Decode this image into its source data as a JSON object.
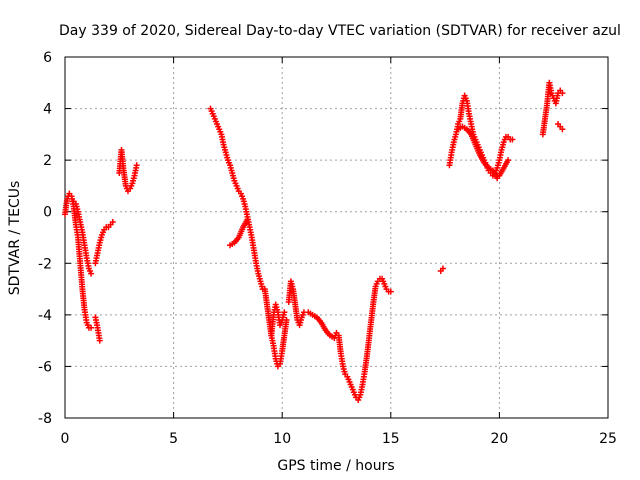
{
  "chart_data": {
    "type": "scatter",
    "title": "Day 339 of 2020, Sidereal Day-to-day VTEC variation (SDTVAR) for receiver azul",
    "xlabel": "GPS time / hours",
    "ylabel": "SDTVAR / TECUs",
    "xlim": [
      0,
      25
    ],
    "ylim": [
      -8,
      6
    ],
    "xticks": [
      "0",
      "5",
      "10",
      "15",
      "20",
      "25"
    ],
    "yticks": [
      "-8",
      "-6",
      "-4",
      "-2",
      "0",
      "2",
      "4",
      "6"
    ],
    "grid": true,
    "marker": "+",
    "color": "#ff0000",
    "segments": [
      [
        [
          0.0,
          -0.1
        ],
        [
          0.1,
          0.5
        ],
        [
          0.2,
          0.7
        ],
        [
          0.3,
          0.6
        ],
        [
          0.4,
          0.2
        ],
        [
          0.5,
          -0.5
        ],
        [
          0.6,
          -1.0
        ],
        [
          0.7,
          -2.0
        ],
        [
          0.8,
          -3.0
        ],
        [
          0.9,
          -3.8
        ],
        [
          1.0,
          -4.3
        ],
        [
          1.1,
          -4.5
        ],
        [
          1.2,
          -4.5
        ]
      ],
      [
        [
          0.4,
          0.4
        ],
        [
          0.5,
          0.3
        ],
        [
          0.6,
          0.0
        ],
        [
          0.7,
          -0.4
        ],
        [
          0.8,
          -0.8
        ],
        [
          0.9,
          -1.3
        ],
        [
          1.0,
          -1.8
        ],
        [
          1.1,
          -2.2
        ],
        [
          1.2,
          -2.4
        ]
      ],
      [
        [
          1.4,
          -4.1
        ],
        [
          1.5,
          -4.5
        ],
        [
          1.6,
          -5.0
        ]
      ],
      [
        [
          1.4,
          -2.0
        ],
        [
          1.5,
          -1.6
        ],
        [
          1.6,
          -1.2
        ],
        [
          1.7,
          -0.9
        ],
        [
          1.8,
          -0.7
        ],
        [
          1.9,
          -0.6
        ],
        [
          2.0,
          -0.6
        ],
        [
          2.1,
          -0.5
        ],
        [
          2.2,
          -0.4
        ]
      ],
      [
        [
          2.5,
          1.5
        ],
        [
          2.6,
          2.4
        ],
        [
          2.7,
          1.6
        ],
        [
          2.8,
          1.0
        ],
        [
          2.9,
          0.8
        ],
        [
          3.0,
          0.9
        ],
        [
          3.1,
          1.1
        ],
        [
          3.2,
          1.4
        ],
        [
          3.3,
          1.8
        ]
      ],
      [
        [
          6.7,
          4.0
        ],
        [
          6.8,
          3.8
        ],
        [
          6.9,
          3.6
        ],
        [
          7.0,
          3.4
        ],
        [
          7.1,
          3.2
        ],
        [
          7.2,
          3.0
        ],
        [
          7.3,
          2.6
        ],
        [
          7.4,
          2.3
        ],
        [
          7.5,
          2.0
        ],
        [
          7.6,
          1.8
        ],
        [
          7.7,
          1.5
        ],
        [
          7.8,
          1.2
        ],
        [
          7.9,
          1.0
        ],
        [
          8.0,
          0.8
        ],
        [
          8.1,
          0.7
        ],
        [
          8.2,
          0.5
        ],
        [
          8.3,
          0.2
        ],
        [
          8.4,
          -0.2
        ],
        [
          8.5,
          -0.6
        ],
        [
          8.6,
          -1.0
        ],
        [
          8.7,
          -1.5
        ],
        [
          8.8,
          -2.0
        ],
        [
          8.9,
          -2.4
        ],
        [
          9.0,
          -2.7
        ],
        [
          9.1,
          -3.0
        ]
      ],
      [
        [
          7.6,
          -1.3
        ],
        [
          7.8,
          -1.2
        ],
        [
          8.0,
          -1.0
        ],
        [
          8.2,
          -0.6
        ],
        [
          8.4,
          -0.3
        ]
      ],
      [
        [
          9.2,
          -3.0
        ],
        [
          9.3,
          -3.6
        ],
        [
          9.4,
          -4.2
        ],
        [
          9.5,
          -4.8
        ],
        [
          9.6,
          -5.2
        ],
        [
          9.7,
          -5.7
        ],
        [
          9.8,
          -6.0
        ],
        [
          9.9,
          -5.9
        ],
        [
          10.0,
          -5.4
        ],
        [
          10.1,
          -4.8
        ],
        [
          10.2,
          -4.2
        ]
      ],
      [
        [
          9.5,
          -4.8
        ],
        [
          9.6,
          -4.0
        ],
        [
          9.7,
          -3.6
        ],
        [
          9.8,
          -3.9
        ],
        [
          9.9,
          -4.4
        ],
        [
          10.0,
          -4.2
        ],
        [
          10.1,
          -3.9
        ]
      ],
      [
        [
          10.3,
          -3.5
        ],
        [
          10.4,
          -2.7
        ],
        [
          10.5,
          -3.0
        ],
        [
          10.6,
          -3.6
        ],
        [
          10.7,
          -4.2
        ],
        [
          10.8,
          -4.4
        ],
        [
          10.9,
          -4.1
        ],
        [
          11.0,
          -3.9
        ],
        [
          11.2,
          -3.9
        ],
        [
          11.4,
          -4.0
        ],
        [
          11.6,
          -4.1
        ],
        [
          11.8,
          -4.3
        ],
        [
          12.0,
          -4.6
        ],
        [
          12.2,
          -4.8
        ],
        [
          12.4,
          -4.9
        ],
        [
          12.5,
          -4.7
        ],
        [
          12.6,
          -4.8
        ],
        [
          12.7,
          -5.5
        ],
        [
          12.8,
          -6.0
        ],
        [
          12.9,
          -6.3
        ],
        [
          13.0,
          -6.4
        ],
        [
          13.1,
          -6.6
        ],
        [
          13.2,
          -6.8
        ],
        [
          13.3,
          -7.0
        ],
        [
          13.4,
          -7.2
        ],
        [
          13.5,
          -7.3
        ],
        [
          13.6,
          -7.1
        ],
        [
          13.7,
          -6.7
        ],
        [
          13.8,
          -6.2
        ],
        [
          13.9,
          -5.6
        ],
        [
          14.0,
          -4.9
        ],
        [
          14.1,
          -4.2
        ],
        [
          14.2,
          -3.5
        ],
        [
          14.3,
          -2.9
        ],
        [
          14.4,
          -2.7
        ],
        [
          14.5,
          -2.6
        ],
        [
          14.6,
          -2.6
        ],
        [
          14.7,
          -2.8
        ],
        [
          14.8,
          -3.0
        ],
        [
          14.9,
          -3.1
        ],
        [
          15.0,
          -3.1
        ]
      ],
      [
        [
          17.3,
          -2.3
        ],
        [
          17.4,
          -2.2
        ]
      ],
      [
        [
          17.7,
          1.8
        ],
        [
          17.8,
          2.3
        ],
        [
          17.9,
          2.7
        ],
        [
          18.0,
          3.0
        ],
        [
          18.1,
          3.4
        ],
        [
          18.2,
          3.6
        ],
        [
          18.3,
          4.2
        ],
        [
          18.4,
          4.5
        ],
        [
          18.5,
          4.3
        ],
        [
          18.6,
          3.8
        ],
        [
          18.7,
          3.4
        ],
        [
          18.8,
          3.0
        ],
        [
          18.9,
          2.8
        ],
        [
          19.0,
          2.6
        ],
        [
          19.1,
          2.4
        ],
        [
          19.2,
          2.2
        ],
        [
          19.3,
          2.0
        ],
        [
          19.4,
          1.8
        ],
        [
          19.5,
          1.6
        ],
        [
          19.6,
          1.5
        ],
        [
          19.7,
          1.4
        ],
        [
          19.8,
          1.5
        ],
        [
          19.9,
          1.7
        ],
        [
          20.0,
          2.0
        ],
        [
          20.1,
          2.4
        ],
        [
          20.2,
          2.7
        ],
        [
          20.3,
          2.9
        ],
        [
          20.4,
          2.9
        ],
        [
          20.5,
          2.8
        ],
        [
          20.6,
          2.8
        ]
      ],
      [
        [
          18.1,
          3.2
        ],
        [
          18.3,
          3.3
        ],
        [
          18.5,
          3.2
        ],
        [
          18.7,
          3.0
        ],
        [
          18.9,
          2.6
        ],
        [
          19.1,
          2.2
        ],
        [
          19.3,
          1.9
        ],
        [
          19.5,
          1.7
        ],
        [
          19.7,
          1.6
        ],
        [
          19.9,
          1.3
        ],
        [
          20.0,
          1.4
        ],
        [
          20.2,
          1.7
        ],
        [
          20.4,
          2.0
        ]
      ],
      [
        [
          22.0,
          3.0
        ],
        [
          22.1,
          3.6
        ],
        [
          22.2,
          4.2
        ],
        [
          22.3,
          5.0
        ],
        [
          22.4,
          4.6
        ],
        [
          22.5,
          4.4
        ],
        [
          22.6,
          4.2
        ],
        [
          22.7,
          4.6
        ],
        [
          22.8,
          4.7
        ],
        [
          22.9,
          4.6
        ]
      ],
      [
        [
          22.7,
          3.4
        ],
        [
          22.8,
          3.3
        ],
        [
          22.9,
          3.2
        ]
      ]
    ]
  }
}
